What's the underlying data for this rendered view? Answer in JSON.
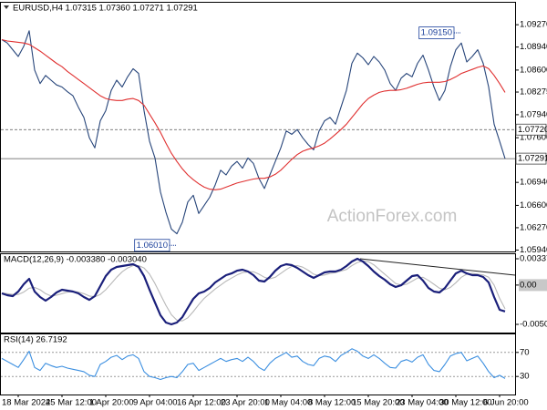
{
  "chart_data": [
    {
      "type": "line",
      "title": "EURUSD,H4  1.07315 1.07360 1.07271 1.07291",
      "watermark": "ActionForex.com",
      "ylim": [
        1.05919,
        1.09595
      ],
      "yticks": [
        {
          "value": 1.0927,
          "label": "1.09270"
        },
        {
          "value": 1.0894,
          "label": "1.08940"
        },
        {
          "value": 1.086,
          "label": "1.08600"
        },
        {
          "value": 1.08275,
          "label": "1.08275"
        },
        {
          "value": 1.0794,
          "label": "1.07940"
        },
        {
          "value": 1.076,
          "label": "1.07600"
        },
        {
          "value": 1.0694,
          "label": "1.06940"
        },
        {
          "value": 1.066,
          "label": "1.06600"
        },
        {
          "value": 1.0627,
          "label": "1.06270"
        },
        {
          "value": 1.0594,
          "label": "1.05940"
        }
      ],
      "grid": false,
      "series": [
        {
          "color": "#27457a",
          "values": [
            1.0905,
            1.09,
            1.089,
            1.088,
            1.0895,
            1.0918,
            1.086,
            1.084,
            1.0852,
            1.0845,
            1.0838,
            1.0835,
            1.0828,
            1.0822,
            1.0805,
            1.079,
            1.076,
            1.0745,
            1.0785,
            1.08,
            1.083,
            1.0845,
            1.0835,
            1.085,
            1.0862,
            1.0855,
            1.08,
            1.0755,
            1.073,
            1.068,
            1.065,
            1.0625,
            1.0618,
            1.0635,
            1.0665,
            1.0675,
            1.0648,
            1.066,
            1.0672,
            1.069,
            1.0712,
            1.0705,
            1.0718,
            1.0725,
            1.0715,
            1.073,
            1.0722,
            1.07,
            1.0685,
            1.0705,
            1.0725,
            1.0745,
            1.077,
            1.0765,
            1.0772,
            1.076,
            1.075,
            1.0742,
            1.077,
            1.0785,
            1.079,
            1.078,
            1.0805,
            1.083,
            1.087,
            1.0885,
            1.0878,
            1.0868,
            1.088,
            1.0872,
            1.086,
            1.084,
            1.083,
            1.0848,
            1.0855,
            1.085,
            1.087,
            1.0882,
            1.086,
            1.0835,
            1.0815,
            1.083,
            1.0865,
            1.089,
            1.09,
            1.0872,
            1.088,
            1.089,
            1.087,
            1.0835,
            1.078,
            1.0755,
            1.07291
          ]
        },
        {
          "color": "#e03030",
          "values": [
            1.0905,
            1.0903,
            1.0902,
            1.0901,
            1.09,
            1.0898,
            1.0893,
            1.0888,
            1.0882,
            1.0876,
            1.087,
            1.0865,
            1.0858,
            1.0852,
            1.0846,
            1.084,
            1.0834,
            1.0828,
            1.0822,
            1.0818,
            1.0816,
            1.0815,
            1.0815,
            1.0817,
            1.0818,
            1.0815,
            1.0808,
            1.0795,
            1.0782,
            1.0768,
            1.0752,
            1.0737,
            1.0725,
            1.0714,
            1.0705,
            1.0698,
            1.0692,
            1.0687,
            1.0684,
            1.0683,
            1.0684,
            1.0687,
            1.069,
            1.0693,
            1.0695,
            1.0697,
            1.0699,
            1.07,
            1.07,
            1.0702,
            1.0706,
            1.0712,
            1.072,
            1.0728,
            1.0735,
            1.074,
            1.0743,
            1.0745,
            1.0748,
            1.0752,
            1.0758,
            1.0765,
            1.0772,
            1.078,
            1.079,
            1.08,
            1.081,
            1.0818,
            1.0823,
            1.0827,
            1.0829,
            1.083,
            1.083,
            1.0831,
            1.0833,
            1.0836,
            1.0839,
            1.0841,
            1.0842,
            1.0842,
            1.0842,
            1.0843,
            1.0846,
            1.085,
            1.0855,
            1.0858,
            1.0861,
            1.0864,
            1.0866,
            1.0862,
            1.0852,
            1.084,
            1.0827
          ]
        }
      ],
      "levels": [
        {
          "value": 1.0772,
          "label": "1.07720",
          "style": "dashed"
        },
        {
          "value": 1.07291,
          "label": "1.07291",
          "style": "solid"
        }
      ],
      "annotations": [
        {
          "value": 1.0915,
          "label": "1.09150",
          "index": 84
        },
        {
          "value": 1.0601,
          "label": "1.06010",
          "index": 32
        }
      ]
    },
    {
      "type": "line",
      "title": "MACD(12,26,9) -0.003380 -0.003040",
      "ylim": [
        -0.00609,
        0.00396
      ],
      "yticks": [
        0.003375,
        {
          "value": 0,
          "label": "0.00"
        },
        -0.00504
      ],
      "grid": false,
      "series": [
        {
          "color": "#b8b8b8",
          "values": [
            -0.001,
            -0.0011,
            -0.0012,
            -0.0012,
            -0.0009,
            -0.0004,
            -0.0003,
            -0.0006,
            -0.0011,
            -0.0014,
            -0.0013,
            -0.0011,
            -0.0009,
            -0.0008,
            -0.0009,
            -0.0011,
            -0.0014,
            -0.0015,
            -0.0012,
            -0.0006,
            0.0002,
            0.001,
            0.0017,
            0.0022,
            0.0025,
            0.0025,
            0.0022,
            0.0014,
            0.0002,
            -0.0012,
            -0.0026,
            -0.0038,
            -0.0045,
            -0.0046,
            -0.0042,
            -0.0034,
            -0.0025,
            -0.0017,
            -0.0011,
            -0.0005,
            0.0,
            0.0005,
            0.0009,
            0.0013,
            0.0016,
            0.0017,
            0.0017,
            0.0014,
            0.001,
            0.0008,
            0.001,
            0.0015,
            0.002,
            0.0024,
            0.0025,
            0.0023,
            0.0019,
            0.0014,
            0.0012,
            0.0013,
            0.0015,
            0.0016,
            0.0018,
            0.002,
            0.0025,
            0.0029,
            0.0031,
            0.003,
            0.0026,
            0.002,
            0.0014,
            0.0008,
            0.0002,
            0.0,
            0.0001,
            0.0005,
            0.0009,
            0.001,
            0.0006,
            0.0001,
            -0.0004,
            -0.0006,
            -0.0003,
            0.0003,
            0.001,
            0.0014,
            0.0015,
            0.0014,
            0.0013,
            0.001,
            0.0,
            -0.0017,
            -0.00304
          ]
        },
        {
          "color": "#1a1f7a",
          "values": [
            -0.00107,
            -0.0013,
            -0.00142,
            -0.00083,
            0.0001,
            0.0008,
            -0.00083,
            -0.00153,
            -0.002,
            -0.00153,
            -0.00095,
            -0.0006,
            -0.00072,
            -0.00083,
            -0.00107,
            -0.00153,
            -0.00189,
            -0.00142,
            -0.00013,
            0.00115,
            0.00197,
            0.00232,
            0.00244,
            0.00256,
            0.00267,
            0.00232,
            0.00115,
            -0.0006,
            -0.00224,
            -0.00387,
            -0.00481,
            -0.00504,
            -0.00481,
            -0.00411,
            -0.00294,
            -0.00177,
            -0.00107,
            -0.00083,
            -0.00037,
            0.00034,
            0.0008,
            0.00127,
            0.0015,
            0.00185,
            0.00197,
            0.00174,
            0.00127,
            0.00057,
            0.00045,
            0.00104,
            0.00185,
            0.00244,
            0.00267,
            0.00256,
            0.00221,
            0.00174,
            0.00127,
            0.00092,
            0.00127,
            0.00162,
            0.00174,
            0.00174,
            0.00197,
            0.00244,
            0.00302,
            0.00337,
            0.00302,
            0.00244,
            0.00174,
            0.00115,
            0.00069,
            0.0001,
            -0.00025,
            -2e-05,
            0.00057,
            0.00115,
            0.00127,
            0.00057,
            -0.00037,
            -0.00083,
            -0.00095,
            -0.00037,
            0.00057,
            0.0015,
            0.00185,
            0.0015,
            0.00127,
            0.00127,
            0.00104,
            0.00034,
            -0.00153,
            -0.00317,
            -0.00338
          ]
        }
      ]
    },
    {
      "type": "line",
      "title": "RSI(14) 26.7192",
      "ylim": [
        0,
        100
      ],
      "yticks": [
        70,
        30
      ],
      "grid": true,
      "categories": [
        null,
        null,
        null,
        "18 Mar 2024",
        null,
        null,
        null,
        null,
        null,
        null,
        null,
        "25 Mar 12:00",
        null,
        null,
        null,
        null,
        null,
        null,
        null,
        "1 Apr 20:00",
        null,
        null,
        null,
        null,
        null,
        null,
        null,
        "9 Apr 04:00",
        null,
        null,
        null,
        null,
        null,
        null,
        null,
        "16 Apr 12:00",
        null,
        null,
        null,
        null,
        null,
        null,
        null,
        "23 Apr 20:00",
        null,
        null,
        null,
        null,
        null,
        null,
        null,
        "1 May 04:00",
        null,
        null,
        null,
        null,
        null,
        null,
        null,
        "8 May 12:00",
        null,
        null,
        null,
        null,
        null,
        null,
        null,
        "15 May 20:00",
        null,
        null,
        null,
        null,
        null,
        null,
        null,
        "23 May 04:00",
        null,
        null,
        null,
        null,
        null,
        null,
        null,
        "30 May 12:00",
        null,
        null,
        null,
        null,
        null,
        null,
        null,
        "6 Jun 20:00",
        null
      ],
      "series": [
        {
          "color": "#3a8ee0",
          "values": [
            60,
            55,
            50,
            45,
            58,
            72,
            45,
            40,
            52,
            48,
            45,
            47,
            44,
            42,
            40,
            38,
            32,
            30,
            50,
            55,
            62,
            65,
            58,
            64,
            66,
            60,
            38,
            30,
            28,
            25,
            28,
            30,
            28,
            38,
            50,
            52,
            40,
            45,
            50,
            55,
            60,
            55,
            58,
            60,
            55,
            62,
            55,
            45,
            40,
            52,
            60,
            65,
            70,
            62,
            64,
            55,
            50,
            48,
            60,
            64,
            62,
            55,
            65,
            70,
            76,
            72,
            64,
            60,
            66,
            60,
            52,
            45,
            44,
            55,
            58,
            54,
            62,
            66,
            50,
            40,
            38,
            50,
            64,
            68,
            70,
            56,
            60,
            64,
            52,
            38,
            28,
            32,
            26.7192
          ]
        }
      ]
    }
  ]
}
